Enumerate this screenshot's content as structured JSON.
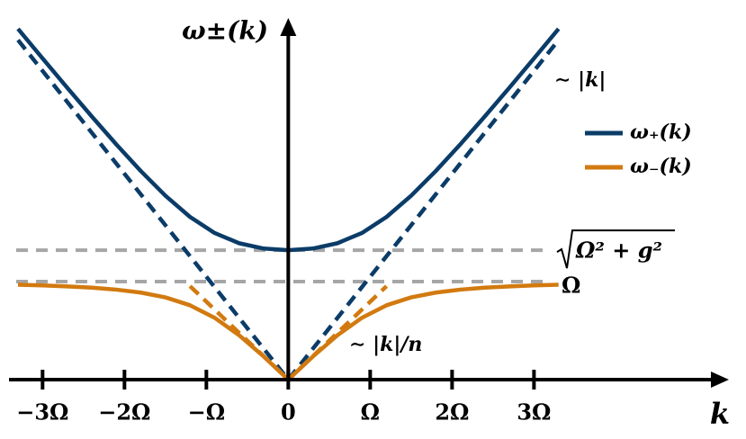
{
  "chart_data": {
    "type": "line",
    "y_label": "ω±(k)",
    "x_label": "k",
    "x": [
      -3.3,
      -3.0,
      -2.7,
      -2.4,
      -2.1,
      -1.8,
      -1.5,
      -1.2,
      -0.9,
      -0.6,
      -0.3,
      0,
      0.3,
      0.6,
      0.9,
      1.2,
      1.5,
      1.8,
      2.1,
      2.4,
      2.7,
      3.0,
      3.3
    ],
    "series": [
      {
        "name": "ω₊(k)",
        "color": "#0b3c68",
        "values": [
          3.5797,
          3.2778,
          2.9794,
          2.6861,
          2.4007,
          2.128,
          1.8765,
          1.6603,
          1.4964,
          1.3918,
          1.3374,
          1.321,
          1.3374,
          1.3918,
          1.4964,
          1.6603,
          1.8765,
          2.128,
          2.4007,
          2.6861,
          2.9794,
          3.2778,
          3.5797
        ]
      },
      {
        "name": "ω₋(k)",
        "color": "#d27a10",
        "values": [
          0.968,
          0.961,
          0.9516,
          0.9381,
          0.9185,
          0.8881,
          0.8393,
          0.7589,
          0.6315,
          0.4527,
          0.2355,
          0,
          0.2355,
          0.4527,
          0.6315,
          0.7589,
          0.8393,
          0.8881,
          0.9185,
          0.9381,
          0.9516,
          0.961,
          0.968
        ]
      }
    ],
    "asymptotes": [
      {
        "color": "#0b3c68",
        "x": [
          -3.3,
          0,
          3.3
        ],
        "values": [
          3.465,
          0,
          3.465
        ]
      },
      {
        "color": "#d27a10",
        "x": [
          -1.2,
          0,
          1.2
        ],
        "values": [
          0.954,
          0,
          0.954
        ]
      }
    ],
    "reference_lines": [
      {
        "value": 1.321,
        "label": "Ω² + g²",
        "color": "#a6a6a6"
      },
      {
        "value": 1,
        "label": "Ω",
        "color": "#a6a6a6"
      }
    ],
    "annotations": [
      "∼ |k|",
      "∼ |k|/n"
    ],
    "xlim": [
      -3.41,
      5.38
    ],
    "ylim": [
      0,
      3.69
    ],
    "xticks": [
      {
        "value": -3,
        "label": "−3Ω"
      },
      {
        "value": -2,
        "label": "−2Ω"
      },
      {
        "value": -1,
        "label": "−Ω"
      },
      0,
      {
        "value": 1,
        "label": "Ω"
      },
      {
        "value": 2,
        "label": "2Ω"
      },
      {
        "value": 3,
        "label": "3Ω"
      }
    ],
    "legend": "right"
  }
}
